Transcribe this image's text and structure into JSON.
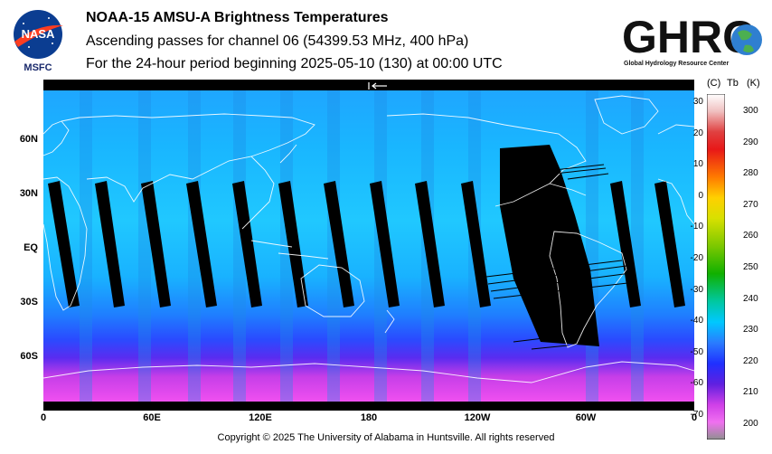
{
  "header": {
    "title": "NOAA-15 AMSU-A Brightness Temperatures",
    "subtitle": "Ascending passes for channel 06 (54399.53 MHz, 400 hPa)",
    "period": "For the 24-hour period beginning 2025-05-10 (130) at 00:00 UTC"
  },
  "logos": {
    "nasa_text": "NASA",
    "nasa_center": "MSFC",
    "ghrc_text": "GHRC",
    "ghrc_caption": "Global Hydrology Resource Center"
  },
  "map": {
    "lat_labels": [
      "60N",
      "30N",
      "EQ",
      "30S",
      "60S"
    ],
    "lon_labels": [
      "0",
      "60E",
      "120E",
      "180",
      "120W",
      "60W",
      "0"
    ],
    "colors": {
      "polar": "#e040e8",
      "midlat": "#2a5cff",
      "tropics": "#18b4ff",
      "land_outline": "#ffffff",
      "gap": "#000000"
    }
  },
  "colorbar": {
    "head_c": "(C)",
    "head_tb": "Tb",
    "head_k": "(K)",
    "celsius_labels": [
      "30",
      "20",
      "10",
      "0",
      "-10",
      "-20",
      "-30",
      "-40",
      "-50",
      "-60",
      "-70"
    ],
    "kelvin_labels": [
      "300",
      "290",
      "280",
      "270",
      "260",
      "250",
      "240",
      "230",
      "220",
      "210",
      "200"
    ]
  },
  "footer": {
    "copyright": "Copyright © 2025 The University of Alabama in Huntsville.  All rights reserved"
  }
}
